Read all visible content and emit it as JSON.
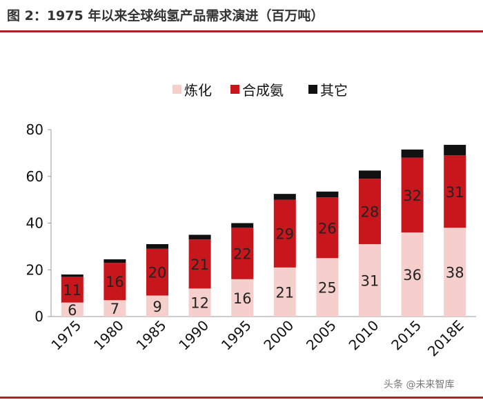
{
  "title": "图 2：1975 年以来全球纯氢产品需求演进（百万吨）",
  "watermark": "头条 @未来智库",
  "colors": {
    "refining": "#f4cfcc",
    "ammonia": "#c8161d",
    "other": "#111111",
    "rule": "#b21e23"
  },
  "chart_data": {
    "type": "bar",
    "stacked": true,
    "title": "1975 年以来全球纯氢产品需求演进（百万吨）",
    "xlabel": "",
    "ylabel": "",
    "ylim": [
      0,
      80
    ],
    "yticks": [
      0,
      20,
      40,
      60,
      80
    ],
    "categories": [
      "1975",
      "1980",
      "1985",
      "1990",
      "1995",
      "2000",
      "2005",
      "2010",
      "2015",
      "2018E"
    ],
    "series": [
      {
        "name": "炼化",
        "values": [
          6,
          7,
          9,
          12,
          16,
          21,
          25,
          31,
          36,
          38
        ],
        "labels": [
          "6",
          "7",
          "9",
          "12",
          "16",
          "21",
          "25",
          "31",
          "36",
          "38"
        ]
      },
      {
        "name": "合成氨",
        "values": [
          11,
          16,
          20,
          21,
          22,
          29,
          26,
          28,
          32,
          31
        ],
        "labels": [
          "11",
          "16",
          "20",
          "21",
          "22",
          "29",
          "26",
          "28",
          "32",
          "31"
        ]
      },
      {
        "name": "其它",
        "values": [
          1,
          1.5,
          2,
          2,
          2,
          2.5,
          2.5,
          3.5,
          3.5,
          4.5
        ]
      }
    ],
    "legend": "top-center"
  }
}
